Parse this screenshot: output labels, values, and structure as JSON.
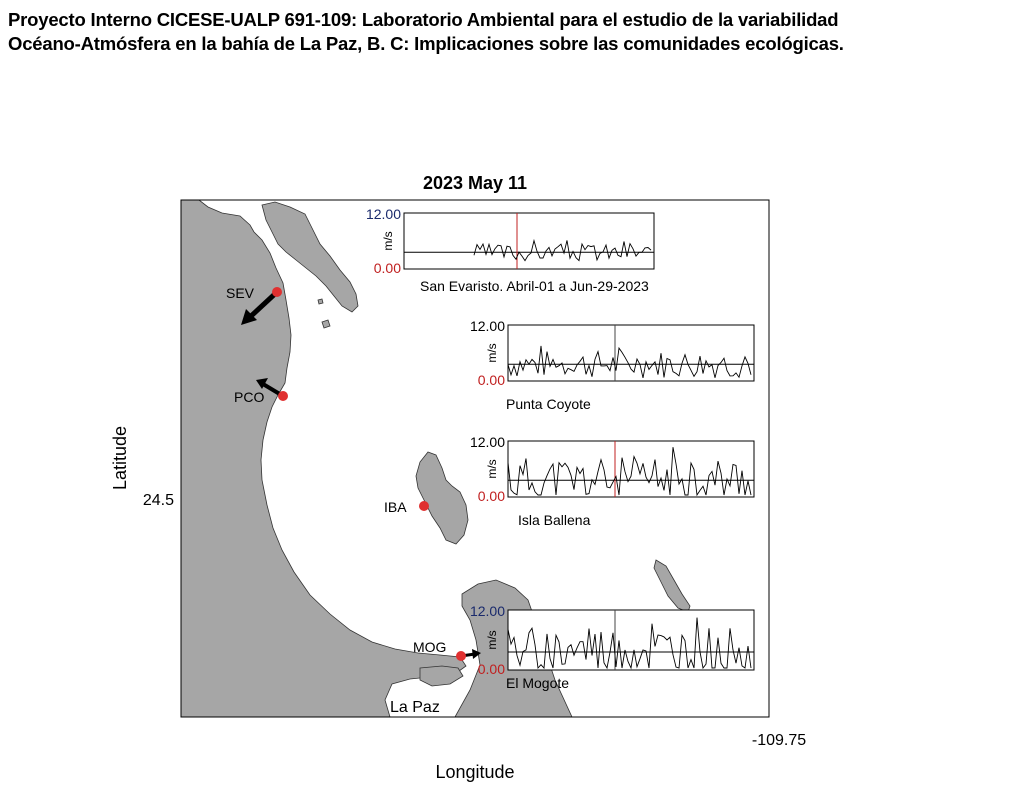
{
  "header": {
    "line1": "Proyecto Interno CICESE-UALP 691-109: Laboratorio Ambiental para el estudio de la variabilidad",
    "line2": "Océano-Atmósfera en la bahía de La Paz, B. C: Implicaciones sobre las comunidades ecológicas."
  },
  "map": {
    "title": "2023 May 11",
    "xlabel": "Longitude",
    "ylabel": "Latitude",
    "xtick": "-109.75",
    "ytick": "24.5",
    "city_label": "La Paz",
    "land_color": "#a6a6a6",
    "marker_color": "#e03030"
  },
  "stations": [
    {
      "code": "SEV",
      "name": "San Evaristo. Abril-01 a Jun-29-2023",
      "ymax": "12.00",
      "ymin": "0.00",
      "unit": "m/s"
    },
    {
      "code": "PCO",
      "name": "Punta Coyote",
      "ymax": "12.00",
      "ymin": "0.00",
      "unit": "m/s"
    },
    {
      "code": "IBA",
      "name": "Isla Ballena",
      "ymax": "12.00",
      "ymin": "0.00",
      "unit": "m/s"
    },
    {
      "code": "MOG",
      "name": "El Mogote",
      "ymax": "12.00",
      "ymin": "0.00",
      "unit": "m/s"
    }
  ]
}
